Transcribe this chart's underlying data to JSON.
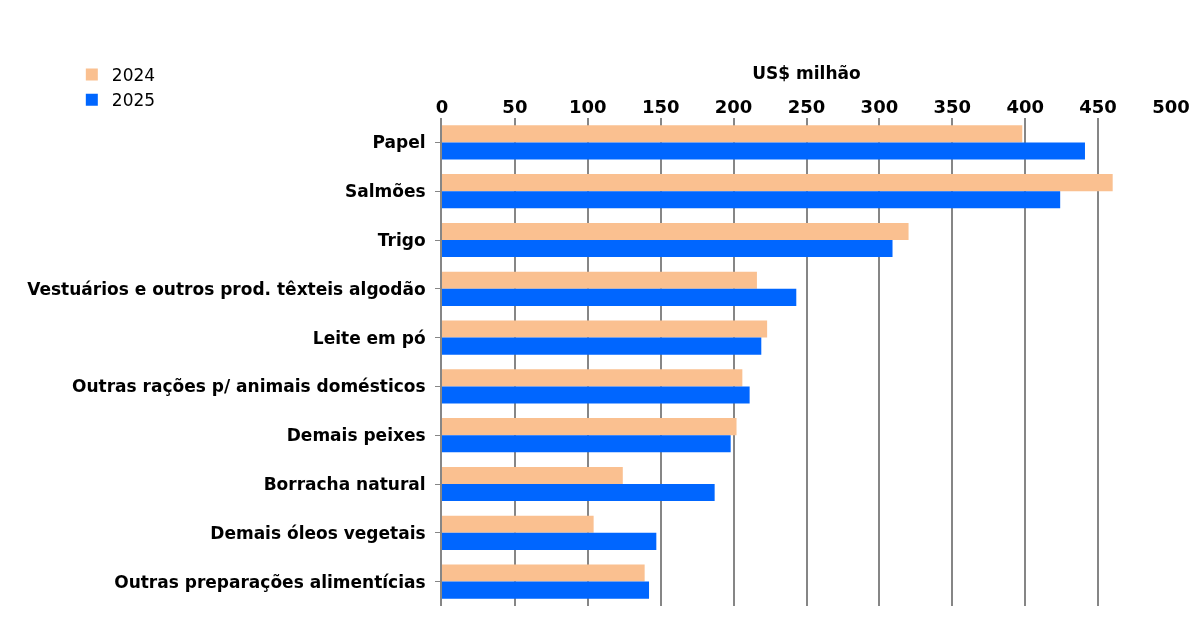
{
  "chart_data": {
    "type": "bar",
    "orientation": "horizontal",
    "xlabel": "US$ milhão",
    "categories": [
      "Papel",
      "Salmões",
      "Trigo",
      "Vestuários e outros prod. têxteis algodão",
      "Leite em pó",
      "Outras rações p/ animais domésticos",
      "Demais peixes",
      "Borracha natural",
      "Demais óleos vegetais",
      "Outras preparações alimentícias"
    ],
    "series": [
      {
        "name": "2024",
        "color": "#fac090",
        "values": [
          398,
          460,
          320,
          216,
          223,
          206,
          202,
          124,
          104,
          139
        ]
      },
      {
        "name": "2025",
        "color": "#0066ff",
        "values": [
          441,
          424,
          309,
          243,
          219,
          211,
          198,
          187,
          147,
          142
        ]
      }
    ],
    "xlim": [
      0,
      500
    ],
    "xticks": [
      0,
      50,
      100,
      150,
      200,
      250,
      300,
      350,
      400,
      450,
      500
    ],
    "grid": "x",
    "legend": "top left"
  }
}
